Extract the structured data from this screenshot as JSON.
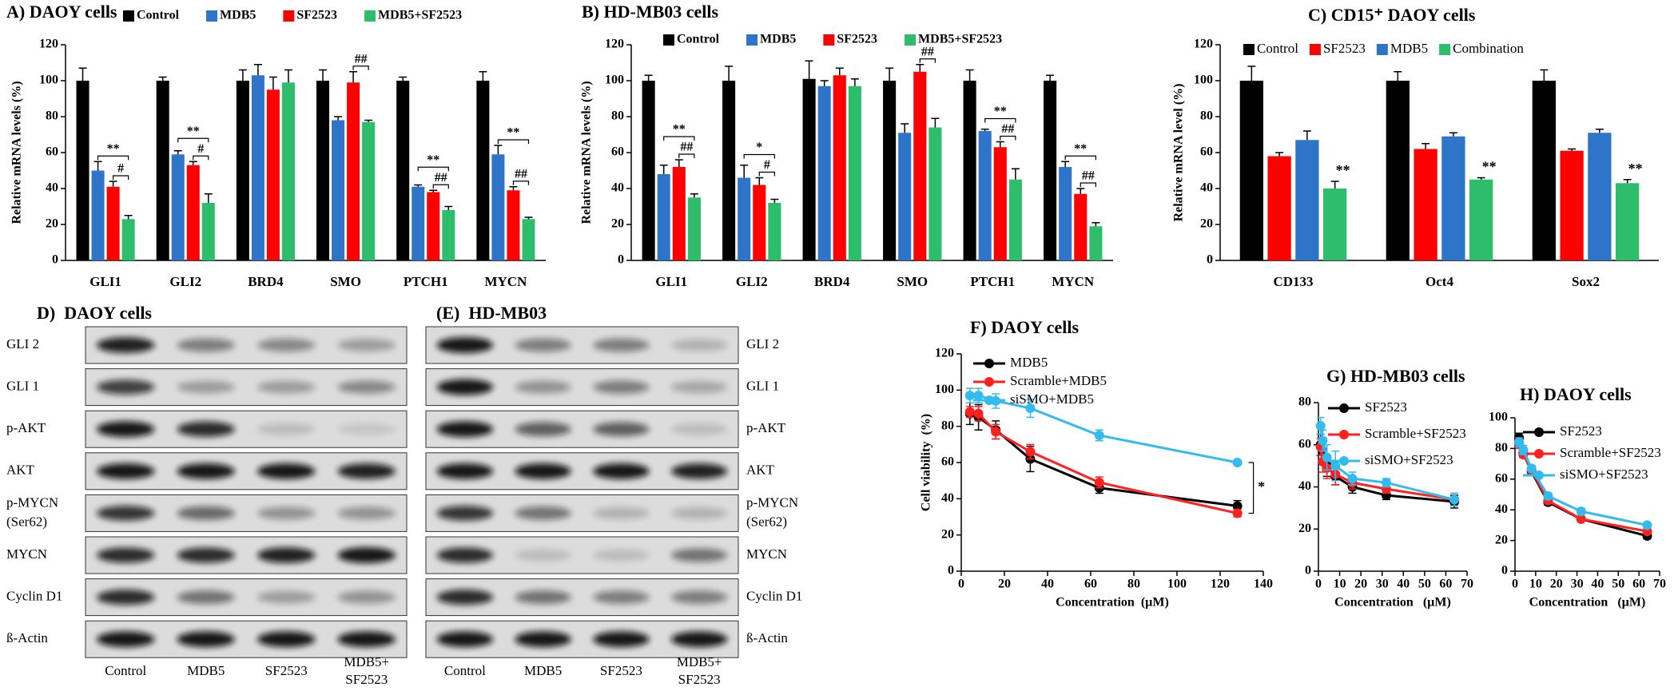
{
  "chart_data": [
    {
      "type": "bar",
      "title": "A) DAOY cells",
      "ylabel": "Relative mRNA levels (%)",
      "categories": [
        "GLI1",
        "GLI2",
        "BRD4",
        "SMO",
        "PTCH1",
        "MYCN"
      ],
      "ylim": [
        0,
        120
      ],
      "yticks": [
        0,
        20,
        40,
        60,
        80,
        100,
        120
      ],
      "legend": "top",
      "series": [
        {
          "name": "Control",
          "color": "#000000",
          "values": [
            100,
            100,
            100,
            100,
            100,
            100
          ],
          "errors": [
            7,
            2,
            6,
            6,
            2,
            5
          ]
        },
        {
          "name": "MDB5",
          "color": "#2e75c9",
          "values": [
            50,
            59,
            103,
            78,
            41,
            59
          ],
          "errors": [
            5,
            2,
            6,
            2,
            1,
            5
          ]
        },
        {
          "name": "SF2523",
          "color": "#ff0000",
          "values": [
            41,
            53,
            95,
            99,
            38,
            39
          ],
          "errors": [
            3,
            2,
            7,
            6,
            1,
            2
          ]
        },
        {
          "name": "MDB5+SF2523",
          "color": "#2ebd6b",
          "values": [
            23,
            32,
            99,
            77,
            28,
            23
          ],
          "errors": [
            2,
            5,
            7,
            1,
            2,
            1
          ]
        }
      ],
      "annotations": [
        {
          "category": "GLI1",
          "text": "**",
          "between": [
            "MDB5",
            "MDB5+SF2523"
          ]
        },
        {
          "category": "GLI1",
          "text": "#",
          "between": [
            "SF2523",
            "MDB5+SF2523"
          ]
        },
        {
          "category": "GLI2",
          "text": "**",
          "between": [
            "MDB5",
            "MDB5+SF2523"
          ]
        },
        {
          "category": "GLI2",
          "text": "#",
          "between": [
            "SF2523",
            "MDB5+SF2523"
          ]
        },
        {
          "category": "SMO",
          "text": "##",
          "between": [
            "SF2523",
            "MDB5+SF2523"
          ]
        },
        {
          "category": "PTCH1",
          "text": "**",
          "between": [
            "MDB5",
            "MDB5+SF2523"
          ]
        },
        {
          "category": "PTCH1",
          "text": "##",
          "between": [
            "SF2523",
            "MDB5+SF2523"
          ]
        },
        {
          "category": "MYCN",
          "text": "**",
          "between": [
            "MDB5",
            "MDB5+SF2523"
          ]
        },
        {
          "category": "MYCN",
          "text": "##",
          "between": [
            "SF2523",
            "MDB5+SF2523"
          ]
        }
      ]
    },
    {
      "type": "bar",
      "title": "B) HD-MB03 cells",
      "ylabel": "Relative mRNA levels (%)",
      "categories": [
        "GLI1",
        "GLI2",
        "BRD4",
        "SMO",
        "PTCH1",
        "MYCN"
      ],
      "ylim": [
        0,
        120
      ],
      "yticks": [
        0,
        20,
        40,
        60,
        80,
        100,
        120
      ],
      "legend": "top",
      "series": [
        {
          "name": "Control",
          "color": "#000000",
          "values": [
            100,
            100,
            101,
            100,
            100,
            100
          ],
          "errors": [
            3,
            8,
            10,
            7,
            6,
            3
          ]
        },
        {
          "name": "MDB5",
          "color": "#2e75c9",
          "values": [
            48,
            46,
            97,
            71,
            72,
            52
          ],
          "errors": [
            5,
            7,
            3,
            5,
            1,
            3
          ]
        },
        {
          "name": "SF2523",
          "color": "#ff0000",
          "values": [
            52,
            42,
            103,
            105,
            63,
            37
          ],
          "errors": [
            4,
            4,
            4,
            4,
            3,
            3
          ]
        },
        {
          "name": "MDB5+SF2523",
          "color": "#2ebd6b",
          "values": [
            35,
            32,
            97,
            74,
            45,
            19
          ],
          "errors": [
            2,
            2,
            4,
            5,
            6,
            2
          ]
        }
      ],
      "annotations": [
        {
          "category": "GLI1",
          "text": "**",
          "between": [
            "MDB5",
            "MDB5+SF2523"
          ]
        },
        {
          "category": "GLI1",
          "text": "##",
          "between": [
            "SF2523",
            "MDB5+SF2523"
          ]
        },
        {
          "category": "GLI2",
          "text": "*",
          "between": [
            "MDB5",
            "MDB5+SF2523"
          ]
        },
        {
          "category": "GLI2",
          "text": "#",
          "between": [
            "SF2523",
            "MDB5+SF2523"
          ]
        },
        {
          "category": "SMO",
          "text": "##",
          "between": [
            "SF2523",
            "MDB5+SF2523"
          ]
        },
        {
          "category": "PTCH1",
          "text": "**",
          "between": [
            "MDB5",
            "MDB5+SF2523"
          ]
        },
        {
          "category": "PTCH1",
          "text": "##",
          "between": [
            "SF2523",
            "MDB5+SF2523"
          ]
        },
        {
          "category": "MYCN",
          "text": "**",
          "between": [
            "MDB5",
            "MDB5+SF2523"
          ]
        },
        {
          "category": "MYCN",
          "text": "##",
          "between": [
            "SF2523",
            "MDB5+SF2523"
          ]
        }
      ]
    },
    {
      "type": "bar",
      "title": "C) CD15⁺ DAOY cells",
      "ylabel": "Relative mRNA level (%)",
      "categories": [
        "CD133",
        "Oct4",
        "Sox2"
      ],
      "ylim": [
        0,
        120
      ],
      "yticks": [
        0,
        20,
        40,
        60,
        80,
        100,
        120
      ],
      "legend": "top",
      "series": [
        {
          "name": "Control",
          "color": "#000000",
          "values": [
            100,
            100,
            100
          ],
          "errors": [
            8,
            5,
            6
          ]
        },
        {
          "name": "SF2523",
          "color": "#ff0000",
          "values": [
            58,
            62,
            61
          ],
          "errors": [
            2,
            3,
            1
          ]
        },
        {
          "name": "MDB5",
          "color": "#2e75c9",
          "values": [
            67,
            69,
            71
          ],
          "errors": [
            5,
            2,
            2
          ]
        },
        {
          "name": "Combination",
          "color": "#2ebd6b",
          "values": [
            40,
            45,
            43
          ],
          "errors": [
            4,
            1,
            2
          ]
        }
      ],
      "annotations": [
        {
          "category": "CD133",
          "text": "**",
          "series": "Combination"
        },
        {
          "category": "Oct4",
          "text": "**",
          "series": "Combination"
        },
        {
          "category": "Sox2",
          "text": "**",
          "series": "Combination"
        }
      ]
    },
    {
      "type": "blot",
      "title": "D)  DAOY cells",
      "rows": [
        "GLI 2",
        "GLI 1",
        "p-AKT",
        "AKT",
        [
          "p-MYCN",
          "(Ser62)"
        ],
        "MYCN",
        "Cyclin D1",
        "ß-Actin"
      ],
      "columns": [
        "Control",
        "MDB5",
        "SF2523",
        [
          "MDB5+",
          "SF2523"
        ]
      ]
    },
    {
      "type": "blot",
      "title": "(E)  HD-MB03",
      "rows": [
        "GLI 2",
        "GLI 1",
        "p-AKT",
        "AKT",
        [
          "p-MYCN",
          "(Ser62)"
        ],
        "MYCN",
        "Cyclin D1",
        "ß-Actin"
      ],
      "columns": [
        "Control",
        "MDB5",
        "SF2523",
        [
          "MDB5+",
          "SF2523"
        ]
      ]
    },
    {
      "type": "line",
      "title": "F) DAOY cells",
      "ylabel": "Cell viability  (%)",
      "xlabel": "Concentration  (µM)",
      "x": [
        4,
        8,
        16,
        32,
        64,
        128
      ],
      "xlim": [
        0,
        140
      ],
      "xticks": [
        0,
        20,
        40,
        60,
        80,
        100,
        120,
        140
      ],
      "ylim": [
        0,
        120
      ],
      "yticks": [
        0,
        20,
        40,
        60,
        80,
        100,
        120
      ],
      "legend": "upper left",
      "series": [
        {
          "name": "MDB5",
          "color": "#000000",
          "values": [
            87,
            85,
            78,
            62,
            46,
            36
          ],
          "errors": [
            6,
            7,
            5,
            7,
            3,
            3
          ]
        },
        {
          "name": "Scramble+MDB5",
          "color": "#ff2020",
          "values": [
            88,
            87,
            77,
            66,
            49,
            32
          ],
          "errors": [
            3,
            4,
            4,
            4,
            3,
            2
          ]
        },
        {
          "name": "siSMO+MDB5",
          "color": "#33bbee",
          "values": [
            97,
            97,
            94,
            90,
            75,
            60
          ],
          "errors": [
            4,
            4,
            4,
            5,
            3,
            1
          ]
        }
      ],
      "annotations": [
        {
          "text": "*",
          "between": [
            "siSMO+MDB5",
            "Scramble+MDB5"
          ]
        }
      ]
    },
    {
      "type": "line",
      "title": "G) HD-MB03 cells",
      "xlabel": "Concentration   (µM)",
      "x": [
        1,
        2,
        4,
        8,
        16,
        32,
        64
      ],
      "xlim": [
        0,
        70
      ],
      "xticks": [
        0,
        10,
        20,
        30,
        40,
        50,
        60,
        70
      ],
      "ylim": [
        0,
        80
      ],
      "yticks": [
        0,
        20,
        40,
        60,
        80
      ],
      "legend": "upper left",
      "series": [
        {
          "name": "SF2523",
          "color": "#000000",
          "values": [
            60,
            57,
            50,
            45,
            40,
            36,
            33
          ],
          "errors": [
            5,
            6,
            5,
            4,
            3,
            2,
            3
          ]
        },
        {
          "name": "Scramble+SF2523",
          "color": "#ff2020",
          "values": [
            59,
            52,
            49,
            46,
            42,
            39,
            34
          ],
          "errors": [
            4,
            5,
            5,
            5,
            3,
            2,
            3
          ]
        },
        {
          "name": "siSMO+SF2523",
          "color": "#33bbee",
          "values": [
            69,
            62,
            54,
            50,
            44,
            42,
            34
          ],
          "errors": [
            4,
            5,
            6,
            7,
            3,
            2,
            3
          ]
        }
      ]
    },
    {
      "type": "line",
      "title": "H) DAOY cells",
      "xlabel": "Concentration   (µM)",
      "x": [
        2,
        4,
        8,
        16,
        32,
        64
      ],
      "xlim": [
        0,
        70
      ],
      "xticks": [
        0,
        10,
        20,
        30,
        40,
        50,
        60,
        70
      ],
      "ylim": [
        0,
        100
      ],
      "yticks": [
        0,
        20,
        40,
        60,
        80,
        100
      ],
      "legend": "upper left",
      "series": [
        {
          "name": "SF2523",
          "color": "#000000",
          "values": [
            87,
            77,
            65,
            45,
            34,
            23
          ],
          "errors": [
            3,
            3,
            2,
            2,
            1,
            2
          ]
        },
        {
          "name": "Scramble+SF2523",
          "color": "#ff2020",
          "values": [
            83,
            76,
            66,
            46,
            34,
            26
          ],
          "errors": [
            3,
            2,
            2,
            2,
            1,
            1
          ]
        },
        {
          "name": "siSMO+SF2523",
          "color": "#33bbee",
          "values": [
            84,
            79,
            67,
            49,
            39,
            30
          ],
          "errors": [
            3,
            3,
            2,
            2,
            2,
            1
          ]
        }
      ]
    }
  ]
}
